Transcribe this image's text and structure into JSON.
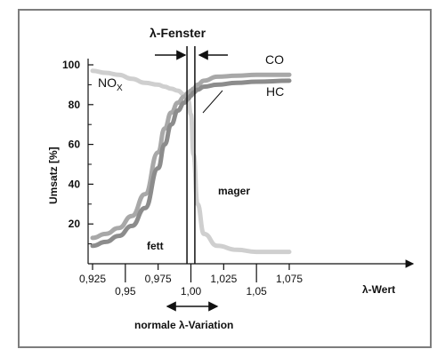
{
  "chart_data": {
    "type": "line",
    "title": "λ-Fenster",
    "xlabel": "λ-Wert",
    "ylabel": "Umsatz [%]",
    "xlim": [
      0.925,
      1.075
    ],
    "ylim": [
      0,
      100
    ],
    "y_ticks": [
      "20",
      "40",
      "60",
      "80",
      "100"
    ],
    "x_ticks_top": [
      "0,925",
      "0,975",
      "1,025",
      "1,075"
    ],
    "x_ticks_bottom": [
      "0,95",
      "1,00",
      "1,05"
    ],
    "annotations": {
      "nox_base": "NO",
      "nox_sub": "X",
      "fett": "fett",
      "mager": "mager",
      "variation": "normale λ-Variation"
    },
    "x": [
      0.925,
      0.935,
      0.945,
      0.955,
      0.965,
      0.975,
      0.98,
      0.985,
      0.99,
      0.995,
      0.998,
      1.0,
      1.002,
      1.005,
      1.01,
      1.02,
      1.035,
      1.05,
      1.075
    ],
    "series": [
      {
        "name": "CO",
        "color": "#a8a8a8",
        "values": [
          13,
          15,
          18,
          24,
          35,
          56,
          68,
          76,
          81,
          84,
          86,
          87,
          88,
          90,
          92,
          94,
          94.5,
          95,
          95
        ]
      },
      {
        "name": "HC",
        "color": "#8c8c8c",
        "values": [
          9,
          11,
          14,
          19,
          28,
          48,
          60,
          70,
          77,
          81,
          83,
          84.5,
          86,
          87.5,
          89,
          90,
          91,
          91.5,
          92
        ]
      },
      {
        "name": "NOx",
        "color": "#cfcfcf",
        "values": [
          97,
          96,
          95,
          93,
          91,
          90,
          89,
          88,
          87,
          85,
          82,
          75,
          55,
          30,
          15,
          9,
          7,
          6,
          6
        ]
      }
    ],
    "window": [
      0.997,
      1.003
    ],
    "grid": false,
    "legend": "none"
  }
}
